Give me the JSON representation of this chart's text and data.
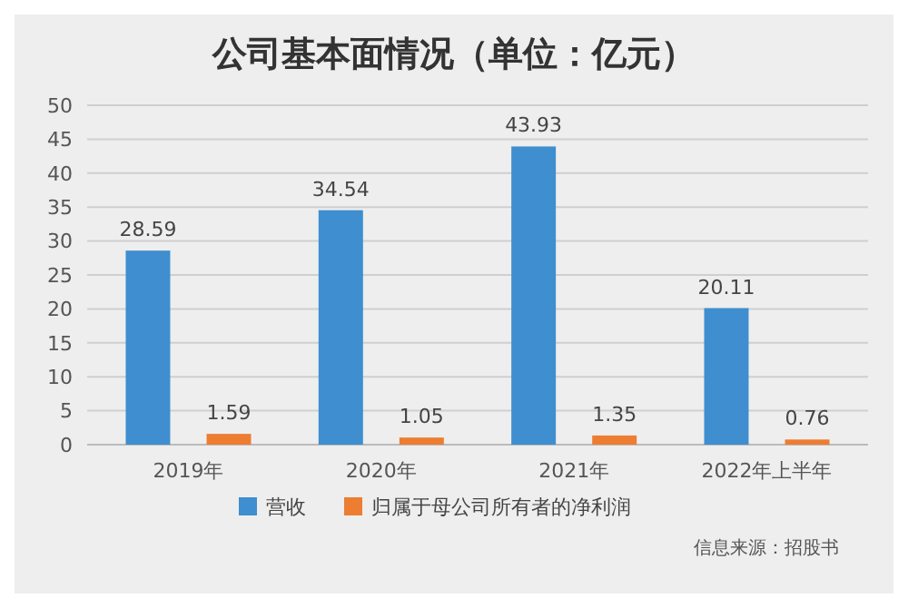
{
  "chart_data": {
    "type": "bar",
    "title": "公司基本面情况（单位：亿元）",
    "categories": [
      "2019年",
      "2020年",
      "2021年",
      "2022年上半年"
    ],
    "series": [
      {
        "name": "营收",
        "color": "#3e8ed0",
        "values": [
          28.59,
          34.54,
          43.93,
          20.11
        ]
      },
      {
        "name": "归属于母公司所有者的净利润",
        "color": "#ed7d31",
        "values": [
          1.59,
          1.05,
          1.35,
          0.76
        ]
      }
    ],
    "ylim": [
      0,
      50
    ],
    "yticks": [
      0,
      5,
      10,
      15,
      20,
      25,
      30,
      35,
      40,
      45,
      50
    ],
    "grid": "y",
    "legend": "bottom",
    "data_labels": true,
    "annotations": [
      "信息来源：招股书"
    ]
  }
}
